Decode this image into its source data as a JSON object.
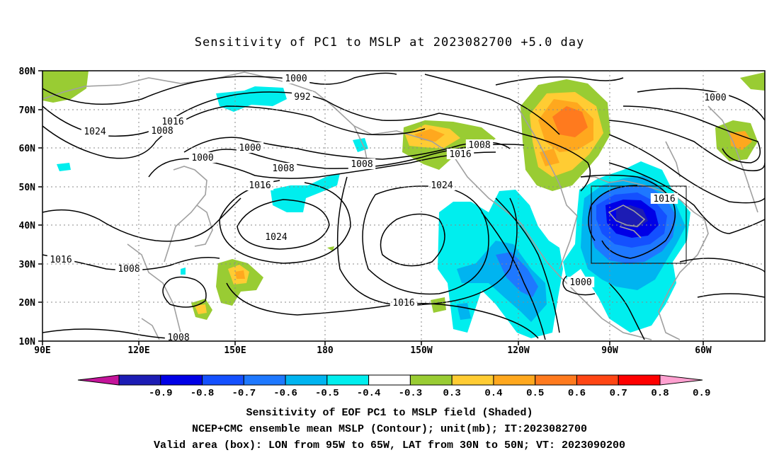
{
  "title": "Sensitivity of PC1 to MSLP at 2023082700 +5.0 day",
  "lat_labels": [
    "80N",
    "70N",
    "60N",
    "50N",
    "40N",
    "30N",
    "20N",
    "10N"
  ],
  "lon_labels": [
    "90E",
    "120E",
    "150E",
    "180",
    "150W",
    "120W",
    "90W",
    "60W"
  ],
  "contour_labels": [
    {
      "text": "1000"
    },
    {
      "text": "992"
    },
    {
      "text": "1016"
    },
    {
      "text": "1024"
    },
    {
      "text": "1008"
    },
    {
      "text": "1000"
    },
    {
      "text": "1000"
    },
    {
      "text": "1008"
    },
    {
      "text": "1016"
    },
    {
      "text": "1016"
    },
    {
      "text": "1024"
    },
    {
      "text": "1016"
    },
    {
      "text": "1008"
    },
    {
      "text": "1008"
    },
    {
      "text": "1000"
    },
    {
      "text": "1016"
    },
    {
      "text": "1024"
    },
    {
      "text": "1016"
    },
    {
      "text": "1008"
    },
    {
      "text": "1000"
    },
    {
      "text": "1008"
    }
  ],
  "colorbar": {
    "labels": [
      "-0.9",
      "-0.8",
      "-0.7",
      "-0.6",
      "-0.5",
      "-0.4",
      "-0.3",
      "0.3",
      "0.4",
      "0.5",
      "0.6",
      "0.7",
      "0.8",
      "0.9"
    ],
    "colors": [
      "#1c1cb4",
      "#0000e6",
      "#1450ff",
      "#1e78ff",
      "#00b4f0",
      "#00eeee",
      "#ffffff",
      "#99cc33",
      "#ffcc33",
      "#ffa81e",
      "#ff7a1e",
      "#ff4614",
      "#ff0000"
    ],
    "low_color": "#c4149a",
    "high_color": "#ffa0d0"
  },
  "footer": {
    "line1": "Sensitivity of EOF PC1 to MSLP field (Shaded)",
    "line2": "NCEP+CMC ensemble mean MSLP (Contour); unit(mb); IT:2023082700",
    "line3": "Valid area (box): LON from 95W to 65W, LAT from 30N to 50N; VT: 2023090200"
  }
}
